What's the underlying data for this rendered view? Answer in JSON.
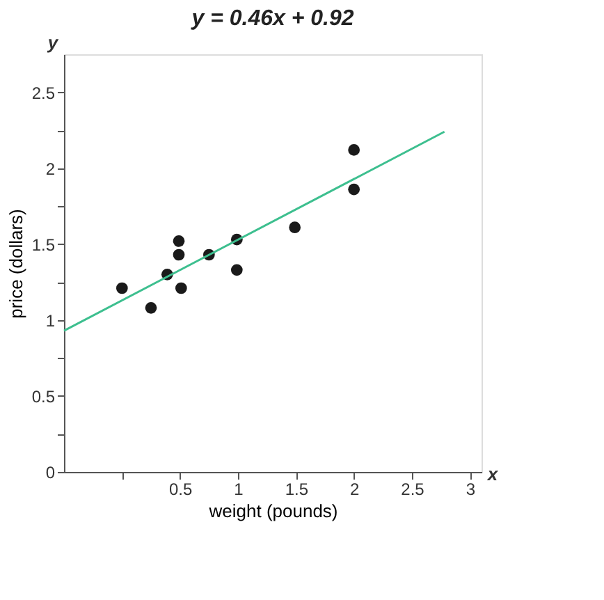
{
  "chart_data": {
    "type": "scatter",
    "title": "y = 0.46x + 0.92",
    "xlabel": "weight (pounds)",
    "ylabel": "price (dollars)",
    "annotations": [
      "x",
      "y"
    ],
    "xlim": [
      -0.5,
      3.1
    ],
    "ylim": [
      0,
      2.75
    ],
    "xticks": [
      {
        "value": 0,
        "label": null
      },
      0.5,
      1,
      1.5,
      2,
      2.5,
      3
    ],
    "yticks": [
      0,
      {
        "value": 0.25,
        "label": null
      },
      0.5,
      {
        "value": 0.75,
        "label": null
      },
      1,
      {
        "value": 1.25,
        "label": null
      },
      1.5,
      {
        "value": 1.75,
        "label": null
      },
      2,
      {
        "value": 2.25,
        "label": null
      },
      2.5
    ],
    "grid": false,
    "marker": "circle",
    "series": [
      {
        "type": "scatter",
        "color": "#1a1a1a",
        "x": [
          0,
          0.25,
          0.39,
          0.49,
          0.49,
          0.51,
          0.75,
          0.99,
          0.99,
          1.49,
          2.0,
          2.0
        ],
        "values": [
          1.21,
          1.08,
          1.3,
          1.43,
          1.52,
          1.21,
          1.43,
          1.53,
          1.33,
          1.61,
          2.12,
          1.86
        ]
      },
      {
        "type": "line",
        "color": "#3dbf8f",
        "x": [
          -0.5,
          2.78
        ],
        "values": [
          0.93,
          2.24
        ],
        "marker": "none"
      }
    ]
  }
}
